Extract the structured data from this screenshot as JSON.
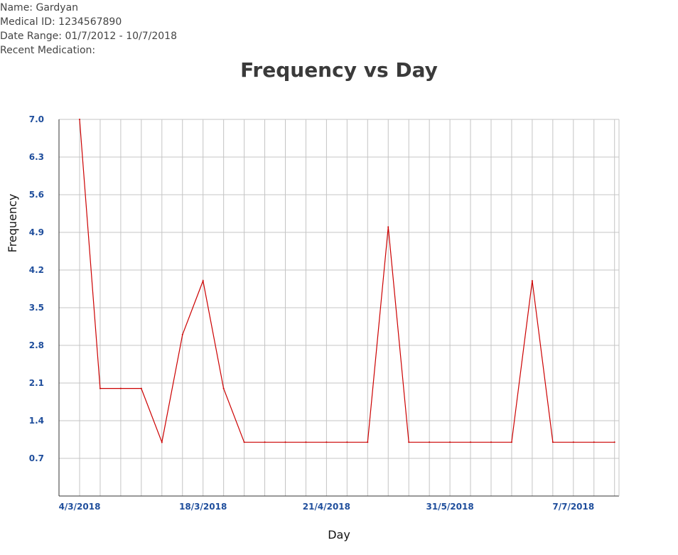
{
  "patient": {
    "name_line": "Name: Gardyan",
    "medical_id_line": "Medical ID: 1234567890",
    "date_range_line": "Date Range: 01/7/2012 - 10/7/2018",
    "medication_line": "Recent Medication:"
  },
  "chart_data": {
    "type": "line",
    "title": "Frequency vs Day",
    "xlabel": "Day",
    "ylabel": "Frequency",
    "ylim": [
      0,
      7.0
    ],
    "y_ticks": [
      "0.7",
      "1.4",
      "2.1",
      "2.8",
      "3.5",
      "4.2",
      "4.9",
      "5.6",
      "6.3",
      "7.0"
    ],
    "x_tick_labels": [
      "4/3/2018",
      "18/3/2018",
      "21/4/2018",
      "31/5/2018",
      "7/7/2018"
    ],
    "x_tick_label_indices": [
      1,
      7,
      13,
      19,
      25
    ],
    "grid": true,
    "series": [
      {
        "color": "#cc0000",
        "x_index": [
          1,
          2,
          3,
          4,
          5,
          6,
          7,
          8,
          9,
          10,
          11,
          12,
          13,
          14,
          15,
          16,
          17,
          18,
          19,
          20,
          21,
          22,
          23,
          24,
          25,
          26,
          27
        ],
        "values": [
          7,
          2,
          2,
          2,
          1,
          3,
          4,
          2,
          1,
          1,
          1,
          1,
          1,
          1,
          1,
          5,
          1,
          1,
          1,
          1,
          1,
          1,
          4,
          1,
          1,
          1,
          1
        ]
      }
    ]
  }
}
